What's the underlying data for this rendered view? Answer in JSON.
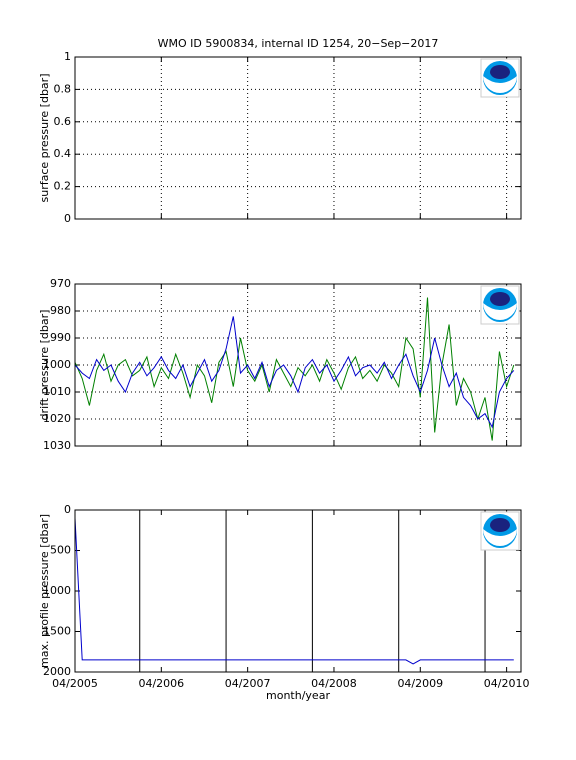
{
  "chart_data": [
    {
      "type": "line",
      "title": "WMO ID 5900834, internal ID 1254, 20−Sep−2017",
      "ylabel": "surface pressure [dbar]",
      "xlim": [
        "04/2005",
        "06/2010"
      ],
      "xticks": [
        "04/2005",
        "04/2006",
        "04/2007",
        "04/2008",
        "04/2009",
        "04/2010"
      ],
      "xticklabels": false,
      "ylim": [
        0,
        1
      ],
      "yticks": [
        0,
        0.2,
        0.4,
        0.6,
        0.8,
        1
      ],
      "grid": true,
      "series": []
    },
    {
      "type": "line",
      "ylabel": "drift pressure [dbar]",
      "y_reversed": true,
      "xlim": [
        "04/2005",
        "06/2010"
      ],
      "xticks": [
        "04/2005",
        "04/2006",
        "04/2007",
        "04/2008",
        "04/2009",
        "04/2010"
      ],
      "xticklabels": false,
      "ylim": [
        970,
        1030
      ],
      "yticks": [
        970,
        980,
        990,
        1000,
        1010,
        1020,
        1030
      ],
      "grid": true,
      "x": [
        "04/2005",
        "05/2005",
        "06/2005",
        "07/2005",
        "08/2005",
        "09/2005",
        "10/2005",
        "11/2005",
        "12/2005",
        "01/2006",
        "02/2006",
        "03/2006",
        "04/2006",
        "05/2006",
        "06/2006",
        "07/2006",
        "08/2006",
        "09/2006",
        "10/2006",
        "11/2006",
        "12/2006",
        "01/2007",
        "02/2007",
        "03/2007",
        "04/2007",
        "05/2007",
        "06/2007",
        "07/2007",
        "08/2007",
        "09/2007",
        "10/2007",
        "11/2007",
        "12/2007",
        "01/2008",
        "02/2008",
        "03/2008",
        "04/2008",
        "05/2008",
        "06/2008",
        "07/2008",
        "08/2008",
        "09/2008",
        "10/2008",
        "11/2008",
        "12/2008",
        "01/2009",
        "02/2009",
        "03/2009",
        "04/2009",
        "05/2009",
        "06/2009",
        "07/2009",
        "08/2009",
        "09/2009",
        "10/2009",
        "11/2009",
        "12/2009",
        "01/2010",
        "02/2010",
        "03/2010",
        "04/2010",
        "05/2010"
      ],
      "series": [
        {
          "color": "#008000",
          "values": [
            999,
            1005,
            1015,
            1002,
            996,
            1006,
            1000,
            998,
            1004,
            1002,
            997,
            1008,
            1001,
            1005,
            996,
            1003,
            1012,
            1000,
            1004,
            1014,
            999,
            995,
            1008,
            990,
            1002,
            1006,
            1000,
            1010,
            998,
            1003,
            1008,
            1001,
            1004,
            1000,
            1006,
            998,
            1003,
            1009,
            1001,
            997,
            1005,
            1002,
            1006,
            1000,
            1003,
            1008,
            990,
            994,
            1012,
            975,
            1025,
            1000,
            985,
            1015,
            1005,
            1010,
            1020,
            1012,
            1028,
            995,
            1008,
            1000
          ]
        },
        {
          "color": "#0000cc",
          "values": [
            1000,
            1003,
            1005,
            998,
            1002,
            1000,
            1006,
            1010,
            1003,
            999,
            1004,
            1001,
            997,
            1002,
            1005,
            1000,
            1008,
            1003,
            998,
            1006,
            1002,
            994,
            982,
            1003,
            1000,
            1005,
            999,
            1008,
            1002,
            1000,
            1004,
            1010,
            1001,
            998,
            1003,
            1000,
            1006,
            1002,
            997,
            1004,
            1001,
            1000,
            1003,
            999,
            1005,
            1000,
            996,
            1004,
            1010,
            1002,
            990,
            1000,
            1008,
            1003,
            1012,
            1015,
            1020,
            1018,
            1023,
            1010,
            1005,
            1002
          ]
        }
      ]
    },
    {
      "type": "line",
      "ylabel": "max. profile pressure [dbar]",
      "xlabel": "month/year",
      "y_reversed": true,
      "xlim": [
        "04/2005",
        "06/2010"
      ],
      "xticks": [
        "04/2005",
        "04/2006",
        "04/2007",
        "04/2008",
        "04/2009",
        "04/2010"
      ],
      "xticklabels": true,
      "ylim": [
        0,
        2000
      ],
      "yticks": [
        0,
        500,
        1000,
        1500,
        2000
      ],
      "grid": false,
      "vlines": [
        "01/2006",
        "01/2007",
        "01/2008",
        "01/2009",
        "01/2010"
      ],
      "x": [
        "04/2005",
        "05/2005",
        "02/2009",
        "03/2009",
        "04/2009",
        "05/2010"
      ],
      "series": [
        {
          "color": "#0000cc",
          "values": [
            100,
            1850,
            1850,
            1900,
            1850,
            1850
          ]
        }
      ]
    }
  ]
}
